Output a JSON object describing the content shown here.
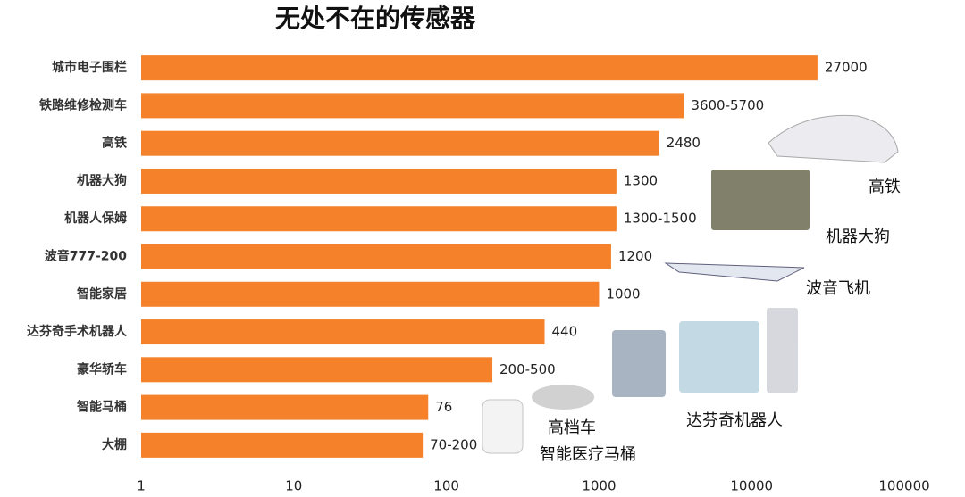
{
  "chart_data": {
    "type": "bar",
    "orientation": "horizontal",
    "title": "无处不在的传感器",
    "categories": [
      "城市电子围栏",
      "铁路维修检测车",
      "高铁",
      "机器大狗",
      "机器人保姆",
      "波音777-200",
      "智能家居",
      "达芬奇手术机器人",
      "豪华轿车",
      "智能马桶",
      "大棚"
    ],
    "values": [
      27000,
      3600,
      2480,
      1300,
      1300,
      1200,
      1000,
      440,
      200,
      76,
      70
    ],
    "value_labels": [
      "27000",
      "3600-5700",
      "2480",
      "1300",
      "1300-1500",
      "1200",
      "1000",
      "440",
      "200-500",
      "76",
      "70-200"
    ],
    "color": "#f5822a",
    "xscale": "log",
    "xlim": [
      1,
      250000
    ],
    "xticks": [
      1,
      10,
      100,
      1000,
      10000,
      100000
    ],
    "grid": false,
    "annotations": [
      "高铁",
      "机器大狗",
      "波音飞机",
      "达芬奇机器人",
      "高档车",
      "智能医疗马桶"
    ]
  }
}
